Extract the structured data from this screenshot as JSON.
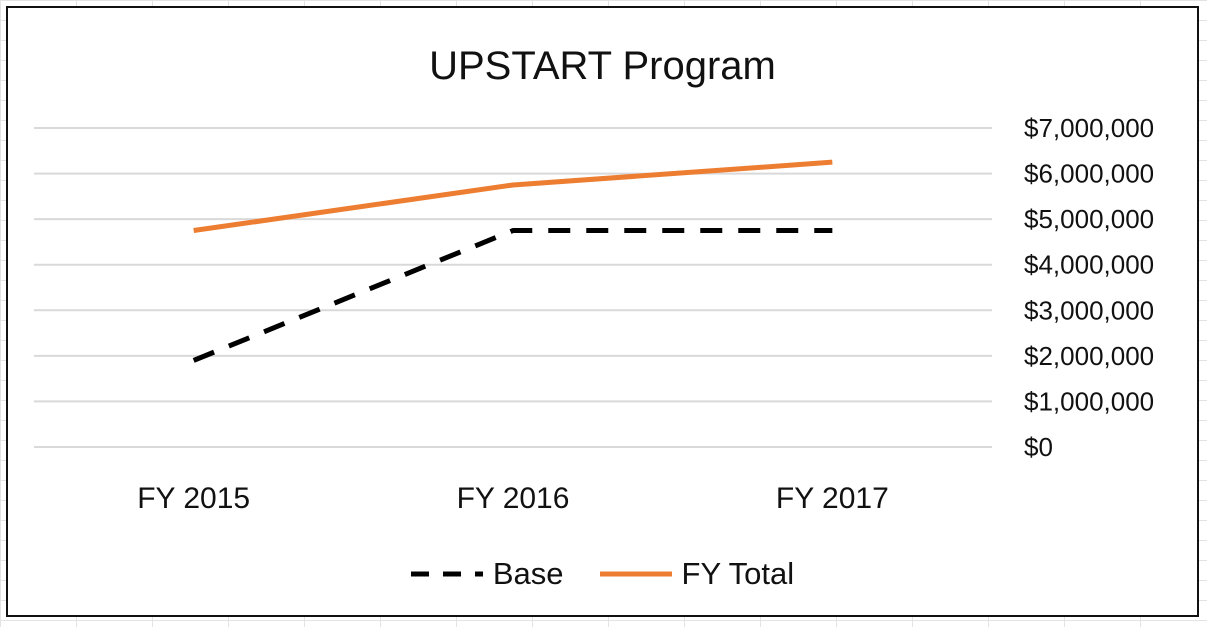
{
  "chart_data": {
    "type": "line",
    "title": "UPSTART Program",
    "categories": [
      "FY 2015",
      "FY 2016",
      "FY 2017"
    ],
    "series": [
      {
        "name": "Base",
        "values": [
          1900000,
          4750000,
          4750000
        ],
        "color": "#000000",
        "dash": "dashed"
      },
      {
        "name": "FY Total",
        "values": [
          4750000,
          5750000,
          6250000
        ],
        "color": "#ED7D31",
        "dash": "solid"
      }
    ],
    "yticks": [
      "$0",
      "$1,000,000",
      "$2,000,000",
      "$3,000,000",
      "$4,000,000",
      "$5,000,000",
      "$6,000,000",
      "$7,000,000"
    ],
    "ylim": [
      0,
      7000000
    ],
    "grid": true,
    "yaxis_side": "right",
    "legend_position": "bottom"
  }
}
